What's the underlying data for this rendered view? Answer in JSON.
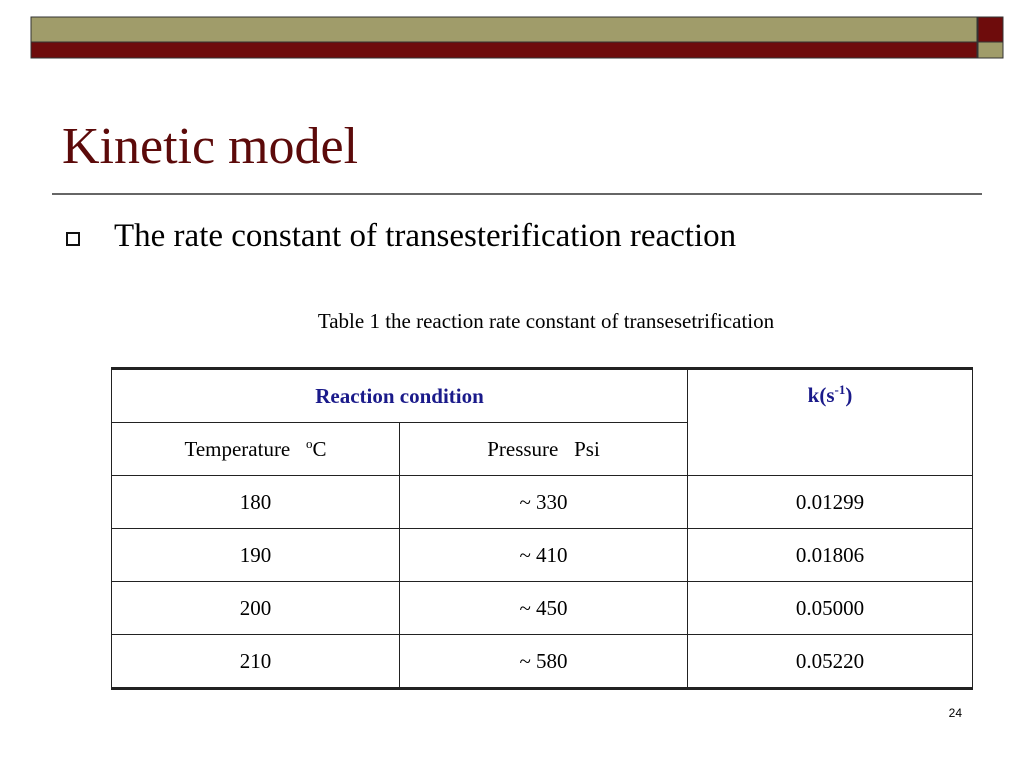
{
  "title": "Kinetic model",
  "bullets": [
    "The rate constant of transesterification reaction"
  ],
  "table": {
    "caption": "Table 1 the reaction rate constant of transesetrification",
    "header": {
      "group": "Reaction condition",
      "k": {
        "base": "k(s",
        "sup": "-1",
        "close": ")"
      },
      "temperature": {
        "base": "Temperature",
        "sup": "o",
        "unit": "C"
      },
      "pressure": "Pressure   Psi"
    },
    "rows": [
      [
        "180",
        "~ 330",
        "0.01299"
      ],
      [
        "190",
        "~ 410",
        "0.01806"
      ],
      [
        "200",
        "~ 450",
        "0.05000"
      ],
      [
        "210",
        "~ 580",
        "0.05220"
      ]
    ]
  },
  "page_number": "24"
}
